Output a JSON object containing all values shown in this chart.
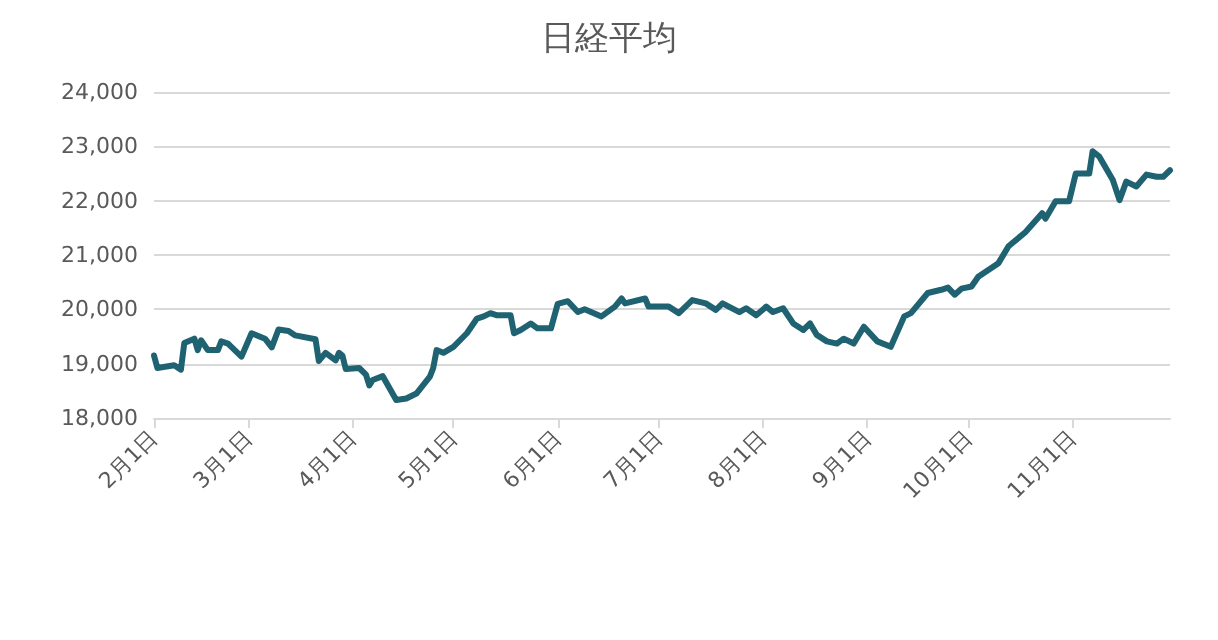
{
  "chart_data": {
    "type": "line",
    "title": "日経平均",
    "x": [
      "--02-01",
      "--02-02",
      "--02-07",
      "--02-09",
      "--02-10",
      "--02-13",
      "--02-14",
      "--02-15",
      "--02-17",
      "--02-20",
      "--02-21",
      "--02-23",
      "--02-27",
      "--03-02",
      "--03-06",
      "--03-08",
      "--03-10",
      "--03-13",
      "--03-15",
      "--03-21",
      "--03-22",
      "--03-24",
      "--03-27",
      "--03-28",
      "--03-29",
      "--03-30",
      "--04-03",
      "--04-05",
      "--04-06",
      "--04-07",
      "--04-10",
      "--04-14",
      "--04-17",
      "--04-20",
      "--04-24",
      "--04-25",
      "--04-26",
      "--04-28",
      "--05-01",
      "--05-05",
      "--05-08",
      "--05-10",
      "--05-12",
      "--05-14",
      "--05-18",
      "--05-19",
      "--05-21",
      "--05-24",
      "--05-26",
      "--05-30",
      "--06-01",
      "--06-04",
      "--06-07",
      "--06-09",
      "--06-14",
      "--06-18",
      "--06-20",
      "--06-21",
      "--06-27",
      "--06-28",
      "--07-04",
      "--07-07",
      "--07-11",
      "--07-15",
      "--07-18",
      "--07-20",
      "--07-25",
      "--07-27",
      "--07-30",
      "--08-02",
      "--08-04",
      "--08-07",
      "--08-10",
      "--08-13",
      "--08-15",
      "--08-17",
      "--08-20",
      "--08-23",
      "--08-25",
      "--08-28",
      "--08-31",
      "--09-04",
      "--09-08",
      "--09-12",
      "--09-14",
      "--09-19",
      "--09-23",
      "--09-25",
      "--09-27",
      "--09-29",
      "--10-02",
      "--10-04",
      "--10-10",
      "--10-13",
      "--10-18",
      "--10-23",
      "--10-24",
      "--10-27",
      "--10-31",
      "--11-02",
      "--11-06",
      "--11-07",
      "--11-09",
      "--11-13",
      "--11-15",
      "--11-17",
      "--11-20",
      "--11-23",
      "--11-26",
      "--11-28",
      "--11-30"
    ],
    "series": [
      {
        "color": "#1f6272",
        "values": [
          19150,
          18920,
          18970,
          18890,
          19380,
          19460,
          19250,
          19430,
          19250,
          19250,
          19410,
          19370,
          19130,
          19560,
          19460,
          19300,
          19630,
          19600,
          19520,
          19450,
          19050,
          19200,
          19060,
          19200,
          19150,
          18900,
          18920,
          18800,
          18600,
          18700,
          18770,
          18330,
          18360,
          18450,
          18760,
          18920,
          19250,
          19200,
          19310,
          19560,
          19830,
          19870,
          19930,
          19890,
          19890,
          19560,
          19620,
          19740,
          19650,
          19650,
          20100,
          20150,
          19950,
          20000,
          19870,
          20050,
          20200,
          20110,
          20200,
          20050,
          20050,
          19930,
          20170,
          20110,
          19990,
          20110,
          19950,
          20020,
          19890,
          20050,
          19950,
          20020,
          19740,
          19620,
          19740,
          19530,
          19410,
          19370,
          19460,
          19370,
          19680,
          19410,
          19310,
          19870,
          19930,
          20300,
          20360,
          20400,
          20270,
          20380,
          20420,
          20600,
          20850,
          21160,
          21420,
          21770,
          21670,
          21990,
          21990,
          22500,
          22500,
          22910,
          22810,
          22380,
          22010,
          22350,
          22260,
          22480,
          22440,
          22440,
          22560
        ]
      }
    ],
    "xlim": [
      "--02-01",
      "--11-30"
    ],
    "xticks": [
      {
        "value": "--02-01",
        "label": "2月1日"
      },
      {
        "value": "--03-01",
        "label": "3月1日"
      },
      {
        "value": "--04-01",
        "label": "4月1日"
      },
      {
        "value": "--05-01",
        "label": "5月1日"
      },
      {
        "value": "--06-01",
        "label": "6月1日"
      },
      {
        "value": "--07-01",
        "label": "7月1日"
      },
      {
        "value": "--08-01",
        "label": "8月1日"
      },
      {
        "value": "--09-01",
        "label": "9月1日"
      },
      {
        "value": "--10-01",
        "label": "10月1日"
      },
      {
        "value": "--11-01",
        "label": "11月1日"
      }
    ],
    "ylim": [
      18000,
      24000
    ],
    "yticks": [
      {
        "value": 18000,
        "label": "18,000"
      },
      {
        "value": 19000,
        "label": "19,000"
      },
      {
        "value": 20000,
        "label": "20,000"
      },
      {
        "value": 21000,
        "label": "21,000"
      },
      {
        "value": 22000,
        "label": "22,000"
      },
      {
        "value": 23000,
        "label": "23,000"
      },
      {
        "value": 24000,
        "label": "24,000"
      }
    ],
    "grid": "y",
    "marker": "none",
    "line_style": "solid"
  }
}
